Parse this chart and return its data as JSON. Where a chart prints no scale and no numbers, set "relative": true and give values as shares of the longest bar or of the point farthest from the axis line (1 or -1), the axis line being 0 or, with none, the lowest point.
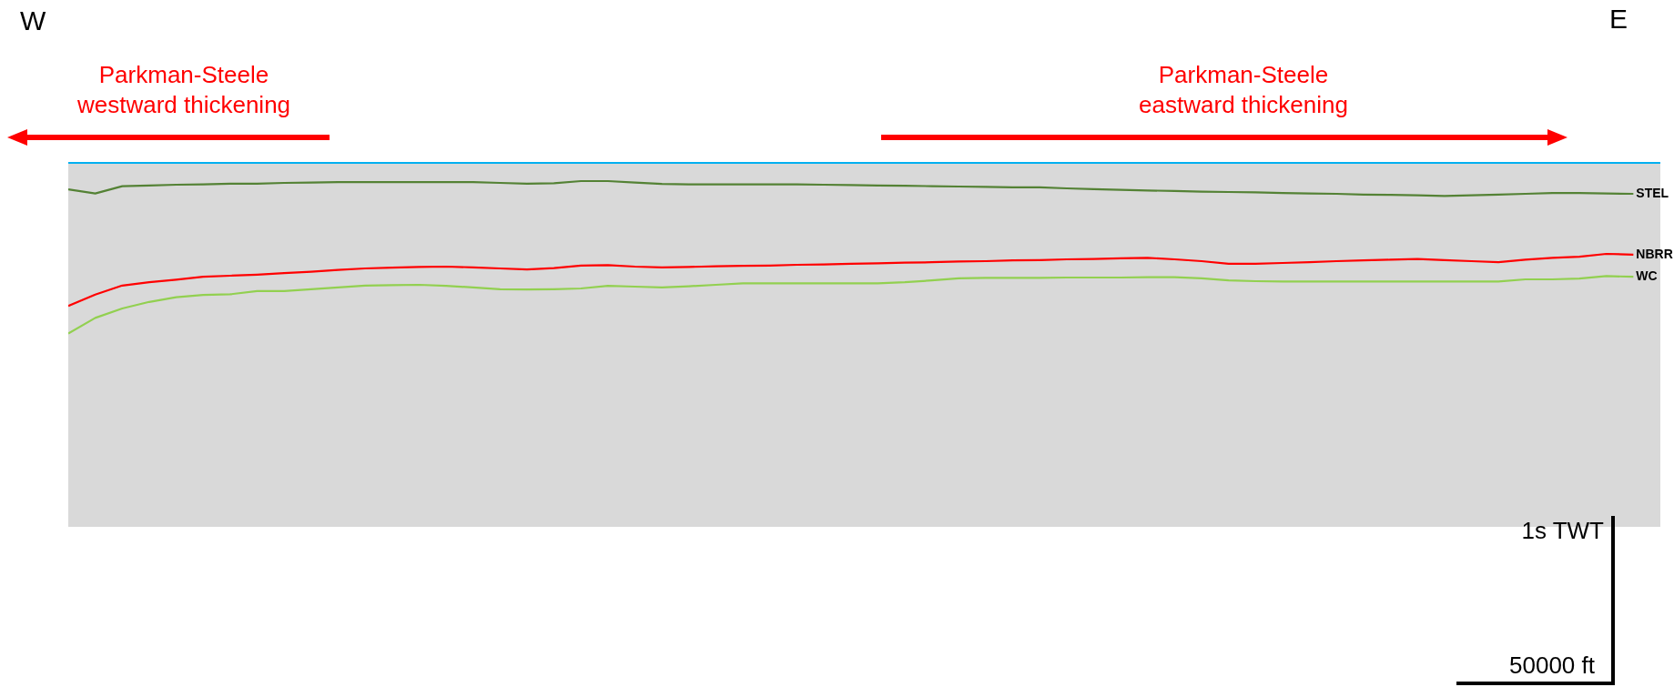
{
  "chart_data": {
    "type": "line",
    "relative": true,
    "grid": false,
    "line_style": "solid",
    "categories": [
      null,
      null,
      null,
      null,
      null,
      null,
      null,
      null,
      null,
      null,
      null,
      null,
      null,
      null,
      null,
      null,
      null,
      null,
      null,
      null,
      null,
      null,
      null,
      null,
      null,
      null,
      null,
      null,
      null,
      null,
      null,
      null,
      null,
      null,
      null,
      null,
      null,
      null,
      null,
      null,
      null,
      null,
      null,
      null,
      null,
      null,
      null,
      null,
      null,
      null,
      null,
      null,
      null,
      null,
      null,
      null,
      null,
      null,
      null,
      null
    ],
    "annotations": [
      "W",
      "E",
      "Parkman-Steele westward thickening",
      "Parkman-Steele eastward thickening",
      "1s TWT",
      "50000 ft"
    ],
    "series": [
      {
        "color": "#00b0f0",
        "values": [
          1,
          1,
          1,
          1,
          1,
          1,
          1,
          1,
          1,
          1,
          1,
          1,
          1,
          1,
          1,
          1,
          1,
          1,
          1,
          1,
          1,
          1,
          1,
          1,
          1,
          1,
          1,
          1,
          1,
          1,
          1,
          1,
          1,
          1,
          1,
          1,
          1,
          1,
          1,
          1,
          1,
          1,
          1,
          1,
          1,
          1,
          1,
          1,
          1,
          1,
          1,
          1,
          1,
          1,
          1,
          1,
          1,
          1,
          1,
          1
        ]
      },
      {
        "name": "STEL",
        "color": "#548235",
        "values": [
          0.927,
          0.916,
          0.936,
          0.938,
          0.94,
          0.941,
          0.943,
          0.943,
          0.945,
          0.946,
          0.947,
          0.947,
          0.947,
          0.947,
          0.947,
          0.947,
          0.945,
          0.943,
          0.944,
          0.95,
          0.95,
          0.946,
          0.942,
          0.941,
          0.941,
          0.941,
          0.941,
          0.941,
          0.94,
          0.939,
          0.938,
          0.937,
          0.936,
          0.935,
          0.934,
          0.933,
          0.933,
          0.93,
          0.928,
          0.926,
          0.924,
          0.923,
          0.921,
          0.92,
          0.919,
          0.917,
          0.916,
          0.915,
          0.913,
          0.912,
          0.911,
          0.909,
          0.911,
          0.913,
          0.915,
          0.917,
          0.917,
          0.916,
          0.915,
          null
        ]
      },
      {
        "name": "NBRR",
        "color": "#ff0000",
        "values": [
          0.607,
          0.638,
          0.663,
          0.672,
          0.679,
          0.687,
          0.69,
          0.693,
          0.697,
          0.701,
          0.706,
          0.71,
          0.712,
          0.714,
          0.715,
          0.713,
          0.71,
          0.707,
          0.711,
          0.718,
          0.719,
          0.715,
          0.713,
          0.714,
          0.716,
          0.717,
          0.718,
          0.72,
          0.721,
          0.723,
          0.724,
          0.726,
          0.727,
          0.729,
          0.73,
          0.732,
          0.733,
          0.735,
          0.736,
          0.738,
          0.739,
          0.735,
          0.73,
          0.723,
          0.723,
          0.725,
          0.727,
          0.73,
          0.732,
          0.734,
          0.736,
          0.733,
          0.73,
          0.727,
          0.734,
          0.739,
          0.742,
          0.75,
          0.748,
          null
        ]
      },
      {
        "name": "WC",
        "color": "#92d050",
        "values": [
          0.531,
          0.574,
          0.6,
          0.618,
          0.631,
          0.637,
          0.639,
          0.648,
          0.648,
          0.653,
          0.658,
          0.663,
          0.664,
          0.665,
          0.662,
          0.658,
          0.653,
          0.652,
          0.653,
          0.655,
          0.662,
          0.66,
          0.658,
          0.661,
          0.665,
          0.669,
          0.669,
          0.669,
          0.669,
          0.669,
          0.669,
          0.672,
          0.677,
          0.683,
          0.684,
          0.684,
          0.684,
          0.685,
          0.685,
          0.685,
          0.686,
          0.686,
          0.683,
          0.677,
          0.675,
          0.674,
          0.674,
          0.674,
          0.674,
          0.674,
          0.674,
          0.674,
          0.674,
          0.674,
          0.68,
          0.68,
          0.682,
          0.689,
          0.687,
          null
        ]
      }
    ]
  }
}
